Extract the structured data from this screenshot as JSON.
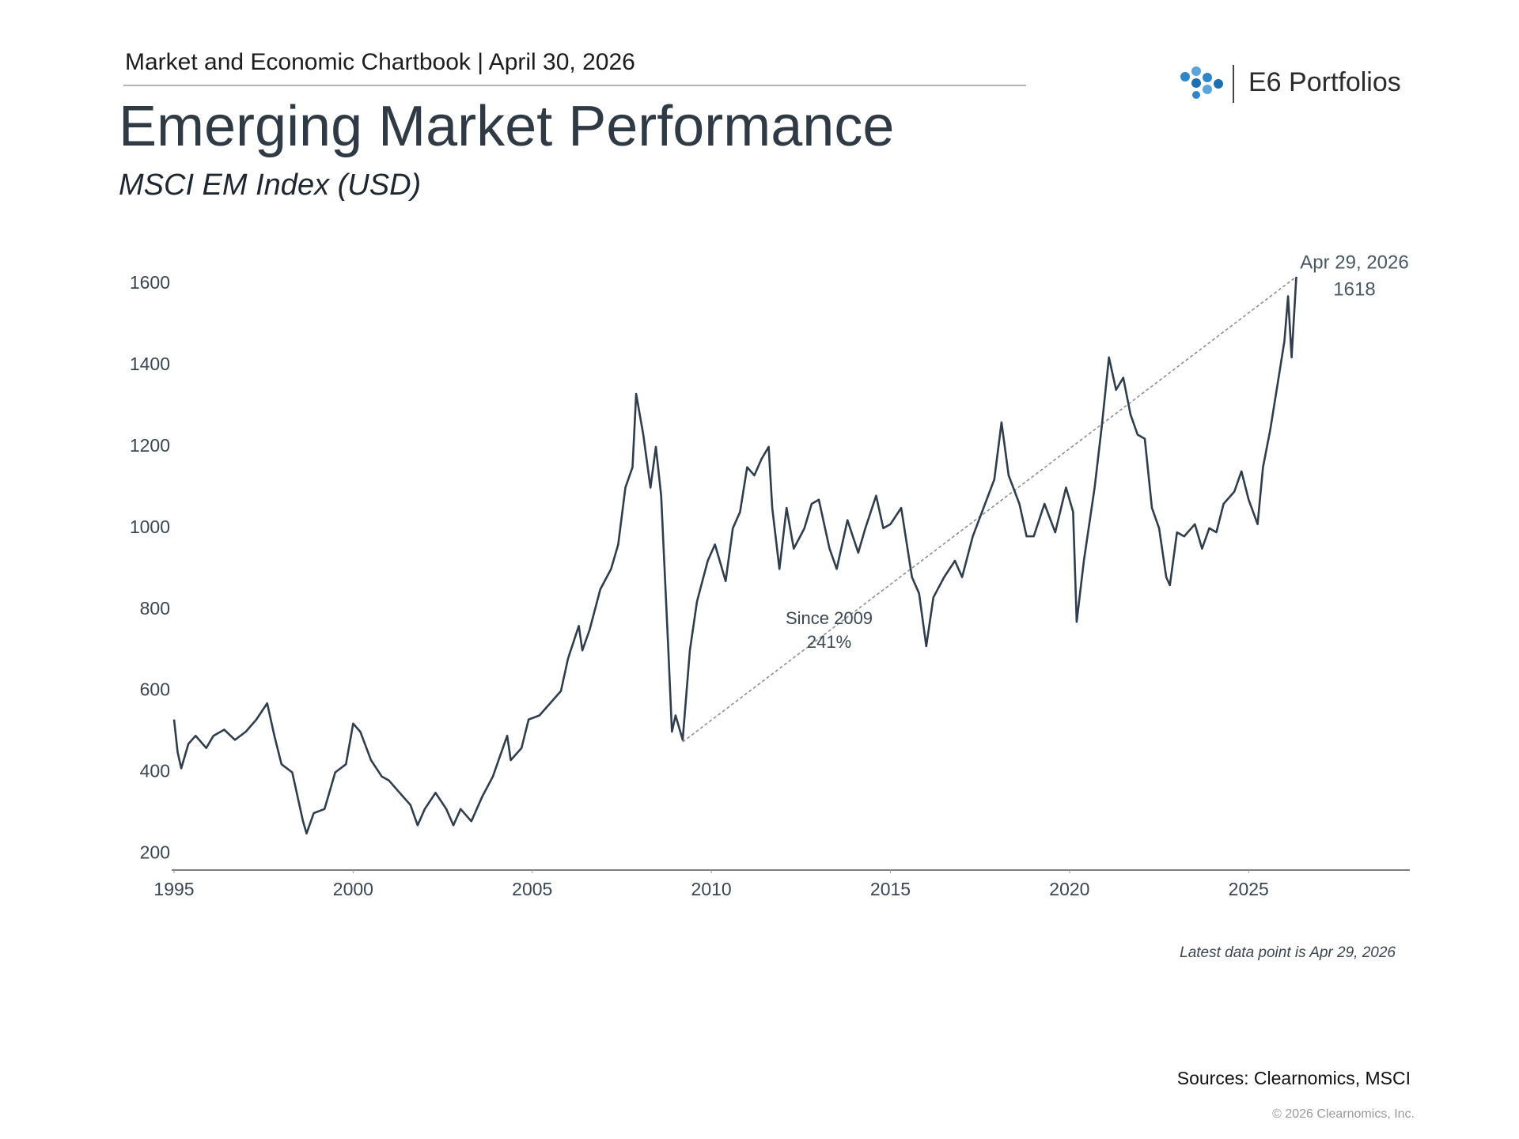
{
  "header": {
    "chartbook": "Market and Economic Chartbook | April 30, 2026",
    "brand": "E6 Portfolios"
  },
  "chart_data": {
    "type": "line",
    "title": "Emerging Market Performance",
    "subtitle": "MSCI EM Index (USD)",
    "series": [
      {
        "name": "MSCI EM Index",
        "color": "#2f3d4c",
        "x": [
          1995.0,
          1995.1,
          1995.2,
          1995.4,
          1995.6,
          1995.9,
          1996.1,
          1996.4,
          1996.7,
          1997.0,
          1997.3,
          1997.6,
          1997.8,
          1998.0,
          1998.3,
          1998.6,
          1998.7,
          1998.9,
          1999.2,
          1999.5,
          1999.8,
          2000.0,
          2000.2,
          2000.5,
          2000.8,
          2001.0,
          2001.3,
          2001.6,
          2001.8,
          2002.0,
          2002.3,
          2002.6,
          2002.8,
          2003.0,
          2003.3,
          2003.6,
          2003.9,
          2004.1,
          2004.3,
          2004.4,
          2004.7,
          2004.9,
          2005.2,
          2005.5,
          2005.8,
          2006.0,
          2006.3,
          2006.4,
          2006.6,
          2006.9,
          2007.2,
          2007.4,
          2007.6,
          2007.8,
          2007.9,
          2008.1,
          2008.3,
          2008.45,
          2008.6,
          2008.8,
          2008.9,
          2009.0,
          2009.2,
          2009.4,
          2009.6,
          2009.9,
          2010.1,
          2010.4,
          2010.6,
          2010.8,
          2011.0,
          2011.2,
          2011.4,
          2011.6,
          2011.7,
          2011.9,
          2012.1,
          2012.3,
          2012.6,
          2012.8,
          2013.0,
          2013.3,
          2013.5,
          2013.8,
          2014.1,
          2014.3,
          2014.6,
          2014.8,
          2015.0,
          2015.3,
          2015.6,
          2015.8,
          2016.0,
          2016.2,
          2016.5,
          2016.8,
          2017.0,
          2017.3,
          2017.6,
          2017.9,
          2018.1,
          2018.3,
          2018.6,
          2018.8,
          2019.0,
          2019.3,
          2019.6,
          2019.9,
          2020.1,
          2020.2,
          2020.4,
          2020.7,
          2020.9,
          2021.1,
          2021.3,
          2021.5,
          2021.7,
          2021.9,
          2022.1,
          2022.3,
          2022.5,
          2022.7,
          2022.8,
          2023.0,
          2023.2,
          2023.5,
          2023.7,
          2023.9,
          2024.1,
          2024.3,
          2024.6,
          2024.8,
          2025.0,
          2025.25,
          2025.4,
          2025.6,
          2025.8,
          2026.0,
          2026.1,
          2026.2,
          2026.33
        ],
        "values": [
          530,
          450,
          410,
          470,
          490,
          460,
          490,
          505,
          480,
          500,
          530,
          570,
          490,
          420,
          400,
          280,
          250,
          300,
          310,
          400,
          420,
          520,
          500,
          430,
          390,
          380,
          350,
          320,
          270,
          310,
          350,
          310,
          270,
          310,
          280,
          340,
          390,
          440,
          490,
          430,
          460,
          530,
          540,
          570,
          600,
          680,
          760,
          700,
          750,
          850,
          900,
          960,
          1100,
          1150,
          1330,
          1230,
          1100,
          1200,
          1080,
          700,
          500,
          540,
          480,
          700,
          820,
          920,
          960,
          870,
          1000,
          1040,
          1150,
          1130,
          1170,
          1200,
          1050,
          900,
          1050,
          950,
          1000,
          1060,
          1070,
          950,
          900,
          1020,
          940,
          1000,
          1080,
          1000,
          1010,
          1050,
          880,
          840,
          710,
          830,
          880,
          920,
          880,
          980,
          1050,
          1120,
          1260,
          1130,
          1060,
          980,
          980,
          1060,
          990,
          1100,
          1040,
          770,
          920,
          1100,
          1250,
          1420,
          1340,
          1370,
          1280,
          1230,
          1220,
          1050,
          1000,
          880,
          860,
          990,
          980,
          1010,
          950,
          1000,
          990,
          1060,
          1090,
          1140,
          1070,
          1010,
          1150,
          1240,
          1350,
          1460,
          1570,
          1420,
          1618
        ]
      }
    ],
    "xlim": [
      1995,
      2029.5
    ],
    "xticks": [
      1995,
      2000,
      2005,
      2010,
      2015,
      2020,
      2025
    ],
    "ylim": [
      160,
      1680
    ],
    "yticks": [
      200,
      400,
      600,
      800,
      1000,
      1200,
      1400,
      1600
    ],
    "last_date_label": "Apr 29, 2026",
    "last_value": 1618,
    "trend": {
      "x": [
        2009.2,
        2026.33
      ],
      "values": [
        475,
        1618
      ],
      "color": "#8a8f94"
    },
    "trend_label": "Since 2009",
    "trend_change": "241%",
    "note": "Latest data point is Apr 29, 2026",
    "source": "Sources: Clearnomics, MSCI",
    "copyright": "© 2026 Clearnomics, Inc."
  }
}
